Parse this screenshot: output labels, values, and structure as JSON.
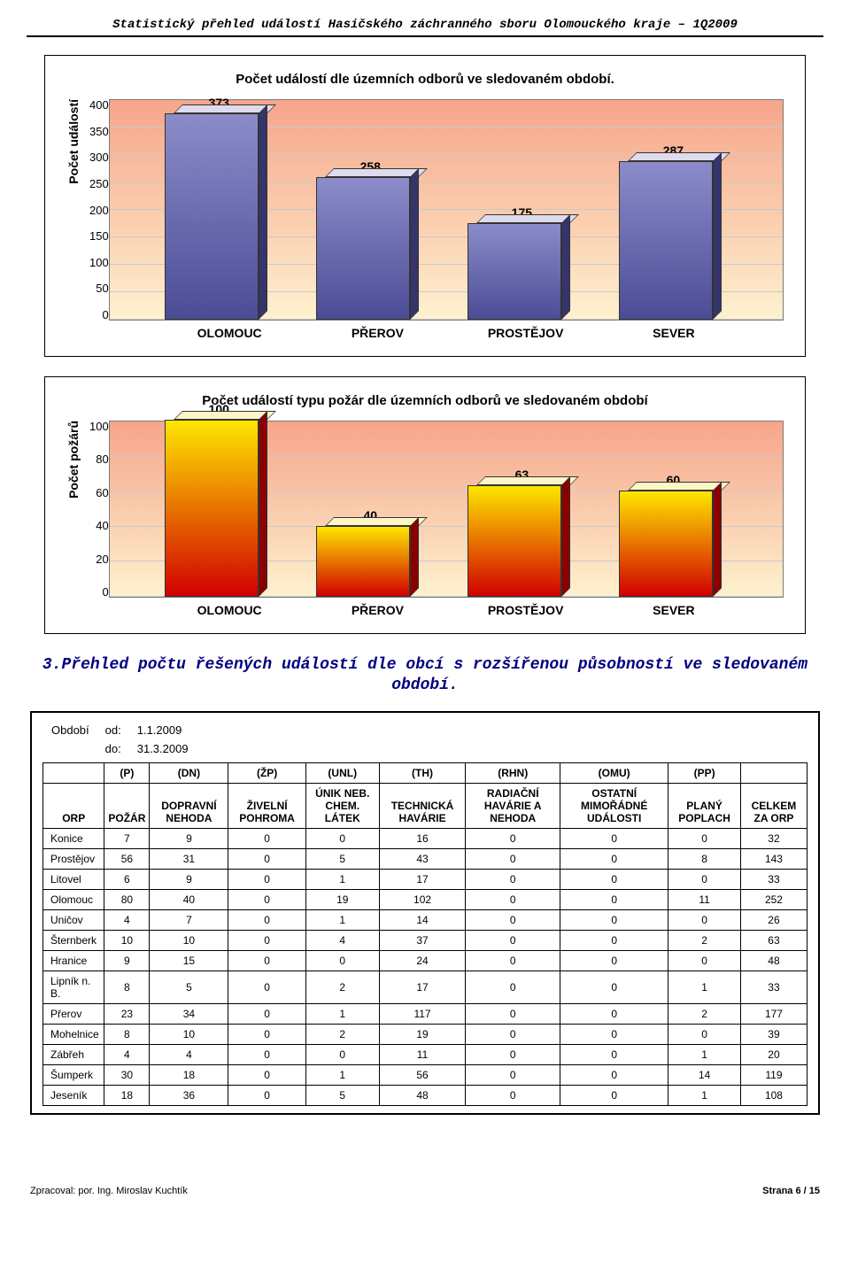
{
  "header": "Statistický přehled událostí Hasičského záchranného sboru Olomouckého kraje – 1Q2009",
  "chart1": {
    "type": "bar",
    "title": "Počet událostí dle územních odborů ve sledovaném období.",
    "ylabel": "Počet událostí",
    "categories": [
      "OLOMOUC",
      "PŘEROV",
      "PROSTĚJOV",
      "SEVER"
    ],
    "values": [
      373,
      258,
      175,
      287
    ],
    "ylim": [
      0,
      400
    ],
    "ytick_step": 50,
    "bar_gradient": [
      "#8b8cc9",
      "#4b4c96"
    ],
    "bar_top": "#dedbed",
    "bar_side": "#35356b",
    "label_fontsize": 14,
    "title_fontsize": 15,
    "tick_fontsize": 13
  },
  "chart2": {
    "type": "bar",
    "title": "Počet událostí typu požár dle územních odborů ve sledovaném období",
    "ylabel": "Počet požárů",
    "categories": [
      "OLOMOUC",
      "PŘEROV",
      "PROSTĚJOV",
      "SEVER"
    ],
    "values": [
      100,
      40,
      63,
      60
    ],
    "ylim": [
      0,
      100
    ],
    "ytick_step": 20,
    "bar_gradient": [
      "#fee600",
      "#d10000"
    ],
    "bar_top": "#fff6c8",
    "bar_side": "#8a0000",
    "label_fontsize": 14,
    "title_fontsize": 15,
    "tick_fontsize": 13
  },
  "section_title": "3.Přehled počtu řešených událostí dle obcí s rozšířenou působností ve sledovaném období.",
  "obdobi": {
    "od_label": "od:",
    "do_label": "do:",
    "period_label": "Období",
    "od": "1.1.2009",
    "do": "31.3.2009"
  },
  "table": {
    "short_headers": [
      "(P)",
      "(DN)",
      "(ŽP)",
      "(UNL)",
      "(TH)",
      "(RHN)",
      "(OMU)",
      "(PP)",
      ""
    ],
    "long_headers": [
      "ORP",
      "POŽÁR",
      "DOPRAVNÍ NEHODA",
      "ŽIVELNÍ POHROMA",
      "ÚNIK NEB. CHEM. LÁTEK",
      "TECHNICKÁ HAVÁRIE",
      "RADIAČNÍ HAVÁRIE A NEHODA",
      "OSTATNÍ MIMOŘÁDNÉ UDÁLOSTI",
      "PLANÝ POPLACH",
      "CELKEM ZA ORP"
    ],
    "rows": [
      [
        "Konice",
        7,
        9,
        0,
        0,
        16,
        0,
        0,
        0,
        32
      ],
      [
        "Prostějov",
        56,
        31,
        0,
        5,
        43,
        0,
        0,
        8,
        143
      ],
      [
        "Litovel",
        6,
        9,
        0,
        1,
        17,
        0,
        0,
        0,
        33
      ],
      [
        "Olomouc",
        80,
        40,
        0,
        19,
        102,
        0,
        0,
        11,
        252
      ],
      [
        "Uničov",
        4,
        7,
        0,
        1,
        14,
        0,
        0,
        0,
        26
      ],
      [
        "Šternberk",
        10,
        10,
        0,
        4,
        37,
        0,
        0,
        2,
        63
      ],
      [
        "Hranice",
        9,
        15,
        0,
        0,
        24,
        0,
        0,
        0,
        48
      ],
      [
        "Lipník n. B.",
        8,
        5,
        0,
        2,
        17,
        0,
        0,
        1,
        33
      ],
      [
        "Přerov",
        23,
        34,
        0,
        1,
        117,
        0,
        0,
        2,
        177
      ],
      [
        "Mohelnice",
        8,
        10,
        0,
        2,
        19,
        0,
        0,
        0,
        39
      ],
      [
        "Zábřeh",
        4,
        4,
        0,
        0,
        11,
        0,
        0,
        1,
        20
      ],
      [
        "Šumperk",
        30,
        18,
        0,
        1,
        56,
        0,
        0,
        14,
        119
      ],
      [
        "Jeseník",
        18,
        36,
        0,
        5,
        48,
        0,
        0,
        1,
        108
      ]
    ]
  },
  "footer": {
    "left": "Zpracoval: por. Ing. Miroslav Kuchtík",
    "right": "Strana 6 / 15"
  }
}
